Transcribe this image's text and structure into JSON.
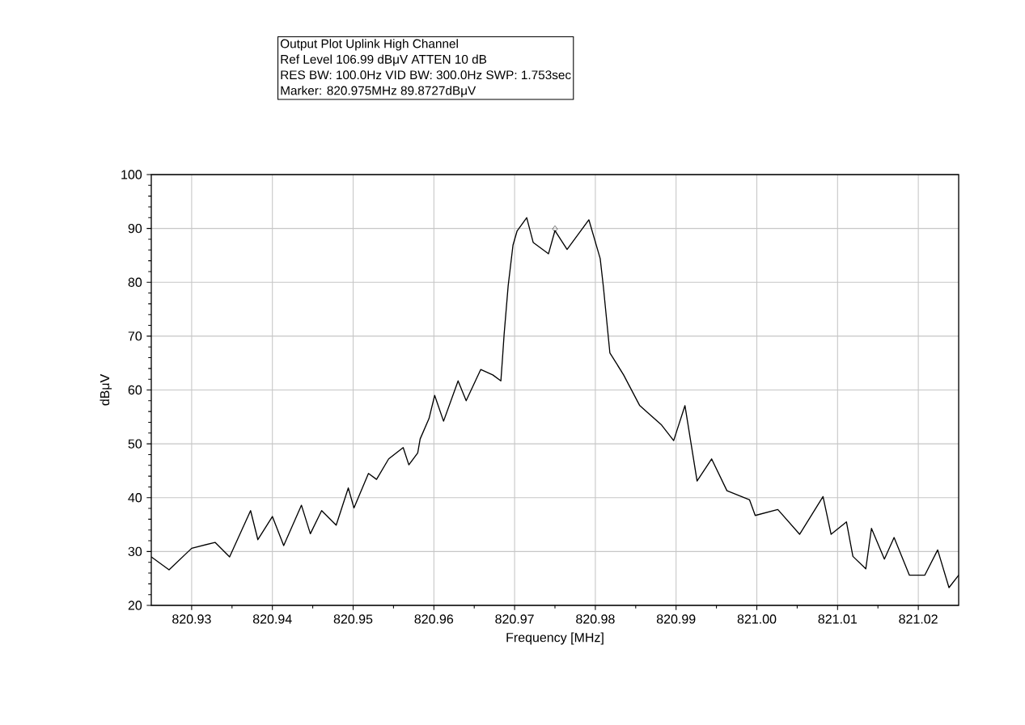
{
  "chart_data": {
    "type": "line",
    "title": "Output Plot Uplink High Channel",
    "annotations": [
      "Ref Level 106.99 dBμV    ATTEN 10 dB",
      "RES BW: 100.0Hz  VID BW: 300.0Hz  SWP: 1.753sec",
      "Marker: 820.975MHz  89.8727dBμV"
    ],
    "xlabel": "Frequency [MHz]",
    "ylabel": "dBμV",
    "xlim": [
      820.925,
      821.025
    ],
    "ylim": [
      20,
      100
    ],
    "xticks": [
      {
        "value": 820.93,
        "label": "820.93"
      },
      {
        "value": 820.94,
        "label": "820.94"
      },
      {
        "value": 820.95,
        "label": "820.95"
      },
      {
        "value": 820.96,
        "label": "820.96"
      },
      {
        "value": 820.97,
        "label": "820.97"
      },
      {
        "value": 820.98,
        "label": "820.98"
      },
      {
        "value": 820.99,
        "label": "820.99"
      },
      {
        "value": 821.0,
        "label": "821.00"
      },
      {
        "value": 821.01,
        "label": "821.01"
      },
      {
        "value": 821.02,
        "label": "821.02"
      }
    ],
    "yticks": [
      20,
      30,
      40,
      50,
      60,
      70,
      80,
      90,
      100
    ],
    "grid": true,
    "series": [
      {
        "color": "#000000",
        "x": [
          820.925,
          820.9272,
          820.93,
          820.9329,
          820.9347,
          820.9373,
          820.9382,
          820.94,
          820.9414,
          820.9436,
          820.9447,
          820.9461,
          820.9479,
          820.9494,
          820.9501,
          820.9519,
          820.9529,
          820.9544,
          820.9562,
          820.9569,
          820.958,
          820.9583,
          820.9594,
          820.9601,
          820.9612,
          820.963,
          820.964,
          820.9658,
          820.9673,
          820.9683,
          820.9685,
          820.9687,
          820.9692,
          820.9698,
          820.9703,
          820.9715,
          820.9723,
          820.9742,
          820.975,
          820.9765,
          820.9792,
          820.9806,
          820.981,
          820.9818,
          820.9835,
          820.9855,
          820.9882,
          820.9897,
          820.9911,
          820.9926,
          820.9944,
          820.9963,
          820.9991,
          820.9998,
          821.0026,
          821.0053,
          821.0082,
          821.0092,
          821.0111,
          821.0119,
          821.0135,
          821.0142,
          821.0158,
          821.017,
          821.0189,
          821.0208,
          821.0224,
          821.0238,
          821.025
        ],
        "values": [
          29.0,
          26.6,
          30.6,
          31.7,
          29.0,
          37.6,
          32.2,
          36.5,
          31.1,
          38.6,
          33.3,
          37.6,
          34.9,
          41.8,
          38.1,
          44.5,
          43.4,
          47.2,
          49.3,
          46.1,
          48.3,
          50.9,
          54.7,
          59.0,
          54.2,
          61.7,
          58.0,
          63.8,
          62.8,
          61.7,
          65.9,
          70.3,
          79.3,
          86.9,
          89.5,
          92.0,
          87.4,
          85.3,
          89.6,
          86.1,
          91.6,
          84.4,
          79.1,
          66.9,
          62.8,
          57.1,
          53.5,
          50.6,
          57.1,
          43.1,
          47.2,
          41.3,
          39.6,
          36.7,
          37.8,
          33.2,
          40.2,
          33.2,
          35.5,
          29.1,
          26.8,
          34.3,
          28.6,
          32.6,
          25.6,
          25.6,
          30.3,
          23.3,
          25.6
        ]
      },
      {
        "type": "scatter",
        "marker": "diamond",
        "color": "#000000",
        "x": [
          820.975
        ],
        "values": [
          89.9
        ]
      }
    ]
  }
}
